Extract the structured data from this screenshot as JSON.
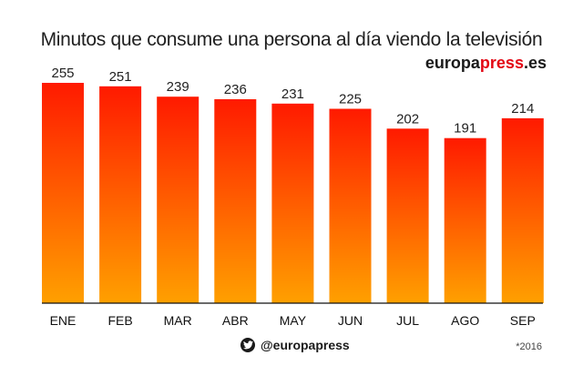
{
  "header": {
    "title": "Minutos que consume una persona al día viendo la televisión",
    "brand_main": "europa",
    "brand_accent": "press",
    "brand_suffix": ".es"
  },
  "footer": {
    "social_icon": "twitter-icon",
    "handle": "@europapress",
    "note": "*2016"
  },
  "colors": {
    "bar_top": "#ff1a00",
    "bar_bottom": "#ffa000",
    "brand_accent": "#e30613",
    "axis": "#111111"
  },
  "chart_data": {
    "type": "bar",
    "title": "Minutos que consume una persona al día viendo la televisión",
    "categories": [
      "ENE",
      "FEB",
      "MAR",
      "ABR",
      "MAY",
      "JUN",
      "JUL",
      "AGO",
      "SEP"
    ],
    "values": [
      255,
      251,
      239,
      236,
      231,
      225,
      202,
      191,
      214
    ],
    "data_labels": [
      "255",
      "251",
      "239",
      "236",
      "231",
      "225",
      "202",
      "191",
      "214"
    ],
    "xlabel": "",
    "ylabel": "",
    "ylim": [
      0,
      255
    ],
    "grid": false,
    "legend": "none"
  }
}
